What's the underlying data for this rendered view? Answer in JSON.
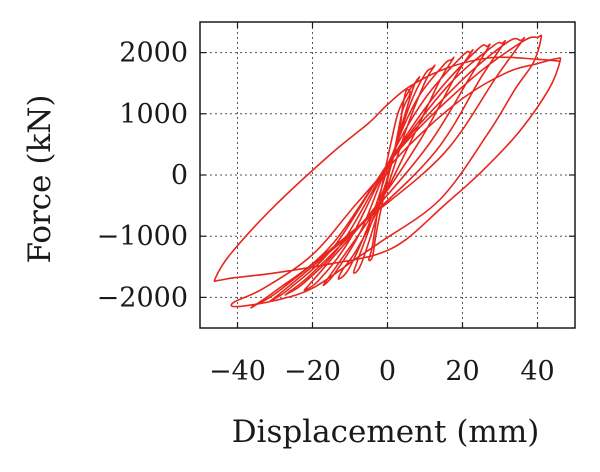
{
  "chart_data": {
    "type": "line",
    "title": "",
    "xlabel": "Displacement (mm)",
    "ylabel": "Force (kN)",
    "xlim": [
      -50,
      50
    ],
    "ylim": [
      -2500,
      2500
    ],
    "x_ticks": [
      -40,
      -20,
      0,
      20,
      40
    ],
    "y_ticks": [
      -2000,
      -1000,
      0,
      1000,
      2000
    ],
    "x_tick_labels": [
      "−40",
      "−20",
      "0",
      "20",
      "40"
    ],
    "y_tick_labels": [
      "−2000",
      "−1000",
      "0",
      "1000",
      "2000"
    ],
    "grid": true,
    "grid_style": "dotted",
    "legend": "none",
    "series_color": "#e8261e",
    "series": [
      {
        "values": [
          [
            0,
            0
          ],
          [
            3,
            650
          ],
          [
            4,
            1100
          ],
          [
            5,
            1380
          ],
          [
            6,
            1330
          ],
          [
            4,
            1050
          ],
          [
            2,
            450
          ],
          [
            -1,
            -350
          ],
          [
            -3,
            -950
          ],
          [
            -4,
            -1330
          ],
          [
            -5,
            -1380
          ],
          [
            -4,
            -1150
          ],
          [
            -2,
            -350
          ],
          [
            1,
            550
          ],
          [
            3,
            1050
          ],
          [
            6,
            1400
          ],
          [
            8,
            1550
          ],
          [
            8.5,
            1600
          ],
          [
            7,
            1450
          ],
          [
            4,
            850
          ],
          [
            0,
            -50
          ],
          [
            -5,
            -900
          ],
          [
            -8,
            -1400
          ],
          [
            -9,
            -1600
          ],
          [
            -7,
            -1450
          ],
          [
            -3,
            -700
          ],
          [
            2,
            400
          ],
          [
            6,
            1150
          ],
          [
            10,
            1650
          ],
          [
            12,
            1750
          ],
          [
            12.5,
            1780
          ],
          [
            10,
            1520
          ],
          [
            5,
            750
          ],
          [
            -1,
            -350
          ],
          [
            -8,
            -1200
          ],
          [
            -12,
            -1550
          ],
          [
            -13,
            -1700
          ],
          [
            -10,
            -1500
          ],
          [
            -4,
            -650
          ],
          [
            2,
            450
          ],
          [
            8,
            1250
          ],
          [
            15,
            1800
          ],
          [
            17,
            1880
          ],
          [
            17.5,
            1900
          ],
          [
            14,
            1550
          ],
          [
            7,
            650
          ],
          [
            -2,
            -450
          ],
          [
            -12,
            -1350
          ],
          [
            -16,
            -1700
          ],
          [
            -17,
            -1800
          ],
          [
            -14,
            -1600
          ],
          [
            -7,
            -900
          ],
          [
            1,
            300
          ],
          [
            10,
            1250
          ],
          [
            20,
            1950
          ],
          [
            22,
            2000
          ],
          [
            22.5,
            2020
          ],
          [
            18,
            1600
          ],
          [
            9,
            600
          ],
          [
            -3,
            -500
          ],
          [
            -16,
            -1450
          ],
          [
            -21,
            -1800
          ],
          [
            -22,
            -1880
          ],
          [
            -18,
            -1700
          ],
          [
            -10,
            -1050
          ],
          [
            0,
            150
          ],
          [
            12,
            1250
          ],
          [
            24,
            2050
          ],
          [
            26.5,
            2100
          ],
          [
            27,
            2100
          ],
          [
            22,
            1600
          ],
          [
            11,
            500
          ],
          [
            -4,
            -600
          ],
          [
            -20,
            -1600
          ],
          [
            -26,
            -1900
          ],
          [
            -27,
            -1950
          ],
          [
            -22,
            -1750
          ],
          [
            -12,
            -1100
          ],
          [
            1,
            250
          ],
          [
            16,
            1450
          ],
          [
            28,
            2100
          ],
          [
            30.5,
            2150
          ],
          [
            31,
            2150
          ],
          [
            25,
            1600
          ],
          [
            13,
            400
          ],
          [
            -5,
            -700
          ],
          [
            -24,
            -1700
          ],
          [
            -30,
            -2000
          ],
          [
            -31,
            -2050
          ],
          [
            -26,
            -1850
          ],
          [
            -14,
            -1150
          ],
          [
            2,
            350
          ],
          [
            19,
            1500
          ],
          [
            32,
            2170
          ],
          [
            35.5,
            2200
          ],
          [
            36,
            2200
          ],
          [
            29,
            1600
          ],
          [
            15,
            350
          ],
          [
            -6,
            -750
          ],
          [
            -28,
            -1850
          ],
          [
            -35,
            -2120
          ],
          [
            -36,
            -2150
          ],
          [
            -30,
            -1900
          ],
          [
            -15,
            -1150
          ],
          [
            3,
            400
          ],
          [
            22,
            1550
          ],
          [
            36,
            2180
          ],
          [
            40,
            2250
          ],
          [
            41,
            2250
          ],
          [
            39,
            1850
          ],
          [
            34,
            1400
          ],
          [
            27,
            700
          ],
          [
            14,
            -400
          ],
          [
            -2,
            -1100
          ],
          [
            -8,
            -1350
          ],
          [
            -20,
            -1850
          ],
          [
            -30,
            -2050
          ],
          [
            -40,
            -2150
          ],
          [
            -41,
            -2080
          ],
          [
            -33,
            -1850
          ],
          [
            -20,
            -1300
          ],
          [
            -8,
            -450
          ],
          [
            6,
            500
          ],
          [
            20,
            1250
          ],
          [
            32,
            1680
          ],
          [
            40,
            1820
          ],
          [
            45,
            1900
          ],
          [
            46,
            1860
          ],
          [
            43,
            1400
          ],
          [
            35,
            700
          ],
          [
            25,
            50
          ],
          [
            15,
            -500
          ],
          [
            5,
            -1050
          ],
          [
            -3,
            -1300
          ],
          [
            -15,
            -1450
          ],
          [
            -30,
            -1600
          ],
          [
            -41,
            -1680
          ],
          [
            -45,
            -1720
          ],
          [
            -46,
            -1700
          ],
          [
            -42,
            -1300
          ],
          [
            -30,
            -500
          ],
          [
            -15,
            350
          ],
          [
            -5,
            850
          ],
          [
            0,
            1150
          ],
          [
            6,
            1450
          ],
          [
            16,
            1750
          ],
          [
            28,
            1920
          ],
          [
            40,
            1890
          ],
          [
            46,
            1860
          ]
        ]
      }
    ]
  }
}
